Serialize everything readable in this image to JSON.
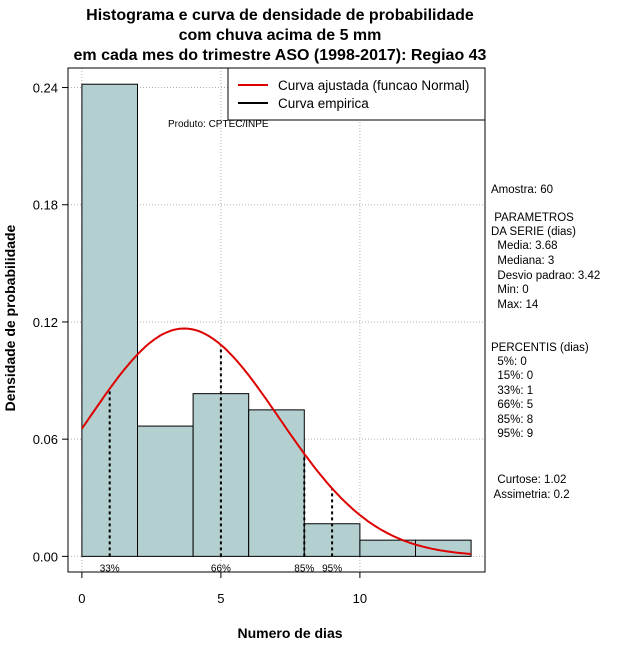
{
  "chart_data": {
    "type": "bar",
    "title_lines": [
      "Histograma e curva de densidade de probabilidade",
      "com chuva acima de 5 mm",
      "em cada mes do trimestre ASO (1998-2017): Regiao 43"
    ],
    "xlabel": "Numero de dias",
    "ylabel": "Densidade de probabilidade",
    "xlim": [
      -0.5,
      14.5
    ],
    "ylim": [
      -0.008,
      0.25
    ],
    "x_ticks": [
      0,
      5,
      10
    ],
    "y_ticks": [
      0.0,
      0.06,
      0.12,
      0.18,
      0.24
    ],
    "y_tick_labels": [
      "0.00",
      "0.06",
      "0.12",
      "0.18",
      "0.24"
    ],
    "bin_edges": [
      0,
      2,
      4,
      6,
      8,
      10,
      12,
      14
    ],
    "density": [
      0.2417,
      0.0667,
      0.0833,
      0.075,
      0.0167,
      0.0083,
      0.0083
    ],
    "bar_color": "#b4cfcf",
    "normal_curve": {
      "mean": 3.68,
      "sd": 3.42,
      "color": "#dd0000"
    },
    "percentile_markers": [
      {
        "label": "33%",
        "x": 1
      },
      {
        "label": "66%",
        "x": 5
      },
      {
        "label": "85%",
        "x": 8
      },
      {
        "label": "95%",
        "x": 9
      }
    ],
    "legend": [
      {
        "label": "Curva ajustada (funcao Normal)",
        "color": "#dd0000"
      },
      {
        "label": "Curva empirica",
        "color": "#000000"
      }
    ],
    "credit": "Produto: CPTEC/INPE"
  },
  "stats": {
    "amostra": "Amostra: 60",
    "param_header_1": " PARAMETROS",
    "param_header_2": "DA SERIE (dias)",
    "media": "  Media: 3.68",
    "mediana": "  Mediana: 3",
    "desvio": "  Desvio padrao: 3.42",
    "min": "  Min: 0",
    "max": "  Max: 14",
    "percentis_header": "PERCENTIS (dias)",
    "p5": "  5%: 0",
    "p15": "  15%: 0",
    "p33": "  33%: 1",
    "p66": "  66%: 5",
    "p85": "  85%: 8",
    "p95": "  95%: 9",
    "curtose": "  Curtose: 1.02",
    "assimetria": " Assimetria: 0.2"
  }
}
